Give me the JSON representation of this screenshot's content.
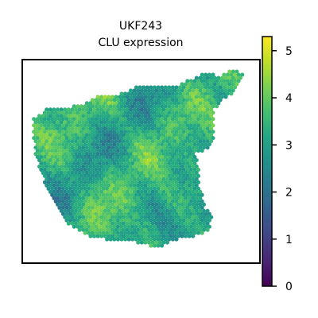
{
  "chart_data": {
    "type": "scatter",
    "title_line1": "UKF243",
    "title_line2": "CLU expression",
    "xlabel": "",
    "ylabel": "",
    "colorbar": {
      "colormap": "viridis",
      "vmin": 0,
      "vmax": 5.3,
      "ticks": [
        "0",
        "1",
        "2",
        "3",
        "4",
        "5"
      ],
      "tick_values": [
        0,
        1,
        2,
        3,
        4,
        5
      ]
    },
    "spots_description": "spatial transcriptomics hexagonal spots colored by expression level, mostly between 2 and 4.5",
    "grid": false,
    "axes_ticks": false
  }
}
